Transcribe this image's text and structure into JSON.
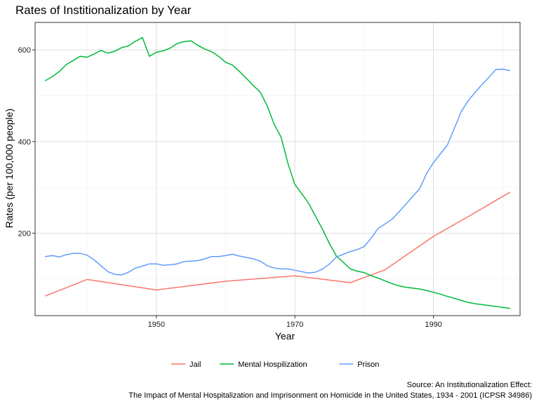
{
  "chart_data": {
    "type": "line",
    "title": "Rates of Institionalization by Year",
    "xlabel": "Year",
    "ylabel": "Rates (per 100,000 people)",
    "xlim": [
      1932.5,
      2002.5
    ],
    "ylim": [
      20,
      660
    ],
    "x_ticks": [
      1950,
      1970,
      1990
    ],
    "y_ticks": [
      200,
      400,
      600
    ],
    "x_minor_ticks": [
      1940,
      1960,
      1980,
      2000
    ],
    "y_minor_ticks": [
      100,
      300,
      500
    ],
    "grid": true,
    "legend_position": "bottom",
    "caption_lines": [
      "Source: An Institutionalization Effect:",
      "The Impact of Mental Hospitalization and Imprisonment on Homicide in the United States, 1934 - 2001 (ICPSR 34986)"
    ],
    "series": [
      {
        "name": "Jail",
        "color": "#F8766D",
        "points": [
          [
            1934,
            63
          ],
          [
            1940,
            99
          ],
          [
            1950,
            76
          ],
          [
            1960,
            95
          ],
          [
            1970,
            107
          ],
          [
            1978,
            92
          ],
          [
            1983,
            120
          ],
          [
            1990,
            193
          ],
          [
            1995,
            236
          ],
          [
            2001,
            289
          ]
        ]
      },
      {
        "name": "Mental Hospilization",
        "color": "#00BA38",
        "points": [
          [
            1934,
            533
          ],
          [
            1935,
            542
          ],
          [
            1936,
            553
          ],
          [
            1937,
            568
          ],
          [
            1938,
            577
          ],
          [
            1939,
            586
          ],
          [
            1940,
            584
          ],
          [
            1941,
            591
          ],
          [
            1942,
            599
          ],
          [
            1943,
            593
          ],
          [
            1944,
            597
          ],
          [
            1945,
            605
          ],
          [
            1946,
            609
          ],
          [
            1947,
            619
          ],
          [
            1948,
            627
          ],
          [
            1949,
            586
          ],
          [
            1950,
            595
          ],
          [
            1951,
            598
          ],
          [
            1952,
            604
          ],
          [
            1953,
            614
          ],
          [
            1954,
            618
          ],
          [
            1955,
            620
          ],
          [
            1956,
            610
          ],
          [
            1957,
            602
          ],
          [
            1958,
            596
          ],
          [
            1959,
            586
          ],
          [
            1960,
            573
          ],
          [
            1961,
            567
          ],
          [
            1962,
            553
          ],
          [
            1963,
            538
          ],
          [
            1964,
            522
          ],
          [
            1965,
            508
          ],
          [
            1966,
            478
          ],
          [
            1967,
            438
          ],
          [
            1968,
            410
          ],
          [
            1969,
            352
          ],
          [
            1970,
            306
          ],
          [
            1971,
            286
          ],
          [
            1972,
            265
          ],
          [
            1973,
            236
          ],
          [
            1974,
            208
          ],
          [
            1975,
            177
          ],
          [
            1976,
            150
          ],
          [
            1977,
            136
          ],
          [
            1978,
            122
          ],
          [
            1979,
            117
          ],
          [
            1980,
            114
          ],
          [
            1981,
            107
          ],
          [
            1982,
            102
          ],
          [
            1983,
            96
          ],
          [
            1984,
            90
          ],
          [
            1985,
            85
          ],
          [
            1986,
            82
          ],
          [
            1987,
            80
          ],
          [
            1988,
            78
          ],
          [
            1989,
            75
          ],
          [
            1990,
            71
          ],
          [
            1991,
            67
          ],
          [
            1992,
            62
          ],
          [
            1993,
            58
          ],
          [
            1994,
            53
          ],
          [
            1995,
            49
          ],
          [
            1996,
            46
          ],
          [
            1997,
            44
          ],
          [
            1998,
            42
          ],
          [
            1999,
            40
          ],
          [
            2000,
            38
          ],
          [
            2001,
            36
          ]
        ]
      },
      {
        "name": "Prison",
        "color": "#619CFF",
        "points": [
          [
            1934,
            149
          ],
          [
            1935,
            151
          ],
          [
            1936,
            148
          ],
          [
            1937,
            153
          ],
          [
            1938,
            156
          ],
          [
            1939,
            156
          ],
          [
            1940,
            152
          ],
          [
            1941,
            142
          ],
          [
            1942,
            129
          ],
          [
            1943,
            116
          ],
          [
            1944,
            110
          ],
          [
            1945,
            109
          ],
          [
            1946,
            115
          ],
          [
            1947,
            124
          ],
          [
            1948,
            128
          ],
          [
            1949,
            133
          ],
          [
            1950,
            133
          ],
          [
            1951,
            130
          ],
          [
            1952,
            131
          ],
          [
            1953,
            133
          ],
          [
            1954,
            138
          ],
          [
            1955,
            139
          ],
          [
            1956,
            140
          ],
          [
            1957,
            144
          ],
          [
            1958,
            149
          ],
          [
            1959,
            149
          ],
          [
            1960,
            151
          ],
          [
            1961,
            154
          ],
          [
            1962,
            150
          ],
          [
            1963,
            147
          ],
          [
            1964,
            144
          ],
          [
            1965,
            139
          ],
          [
            1966,
            129
          ],
          [
            1967,
            124
          ],
          [
            1968,
            122
          ],
          [
            1969,
            122
          ],
          [
            1970,
            119
          ],
          [
            1971,
            116
          ],
          [
            1972,
            113
          ],
          [
            1973,
            115
          ],
          [
            1974,
            122
          ],
          [
            1975,
            133
          ],
          [
            1976,
            148
          ],
          [
            1977,
            154
          ],
          [
            1978,
            160
          ],
          [
            1979,
            164
          ],
          [
            1980,
            171
          ],
          [
            1981,
            189
          ],
          [
            1982,
            210
          ],
          [
            1983,
            220
          ],
          [
            1984,
            230
          ],
          [
            1985,
            246
          ],
          [
            1986,
            263
          ],
          [
            1987,
            280
          ],
          [
            1988,
            297
          ],
          [
            1989,
            330
          ],
          [
            1990,
            354
          ],
          [
            1991,
            373
          ],
          [
            1992,
            392
          ],
          [
            1993,
            428
          ],
          [
            1994,
            465
          ],
          [
            1995,
            489
          ],
          [
            1996,
            507
          ],
          [
            1997,
            524
          ],
          [
            1998,
            540
          ],
          [
            1999,
            557
          ],
          [
            2000,
            558
          ],
          [
            2001,
            555
          ]
        ]
      }
    ]
  }
}
